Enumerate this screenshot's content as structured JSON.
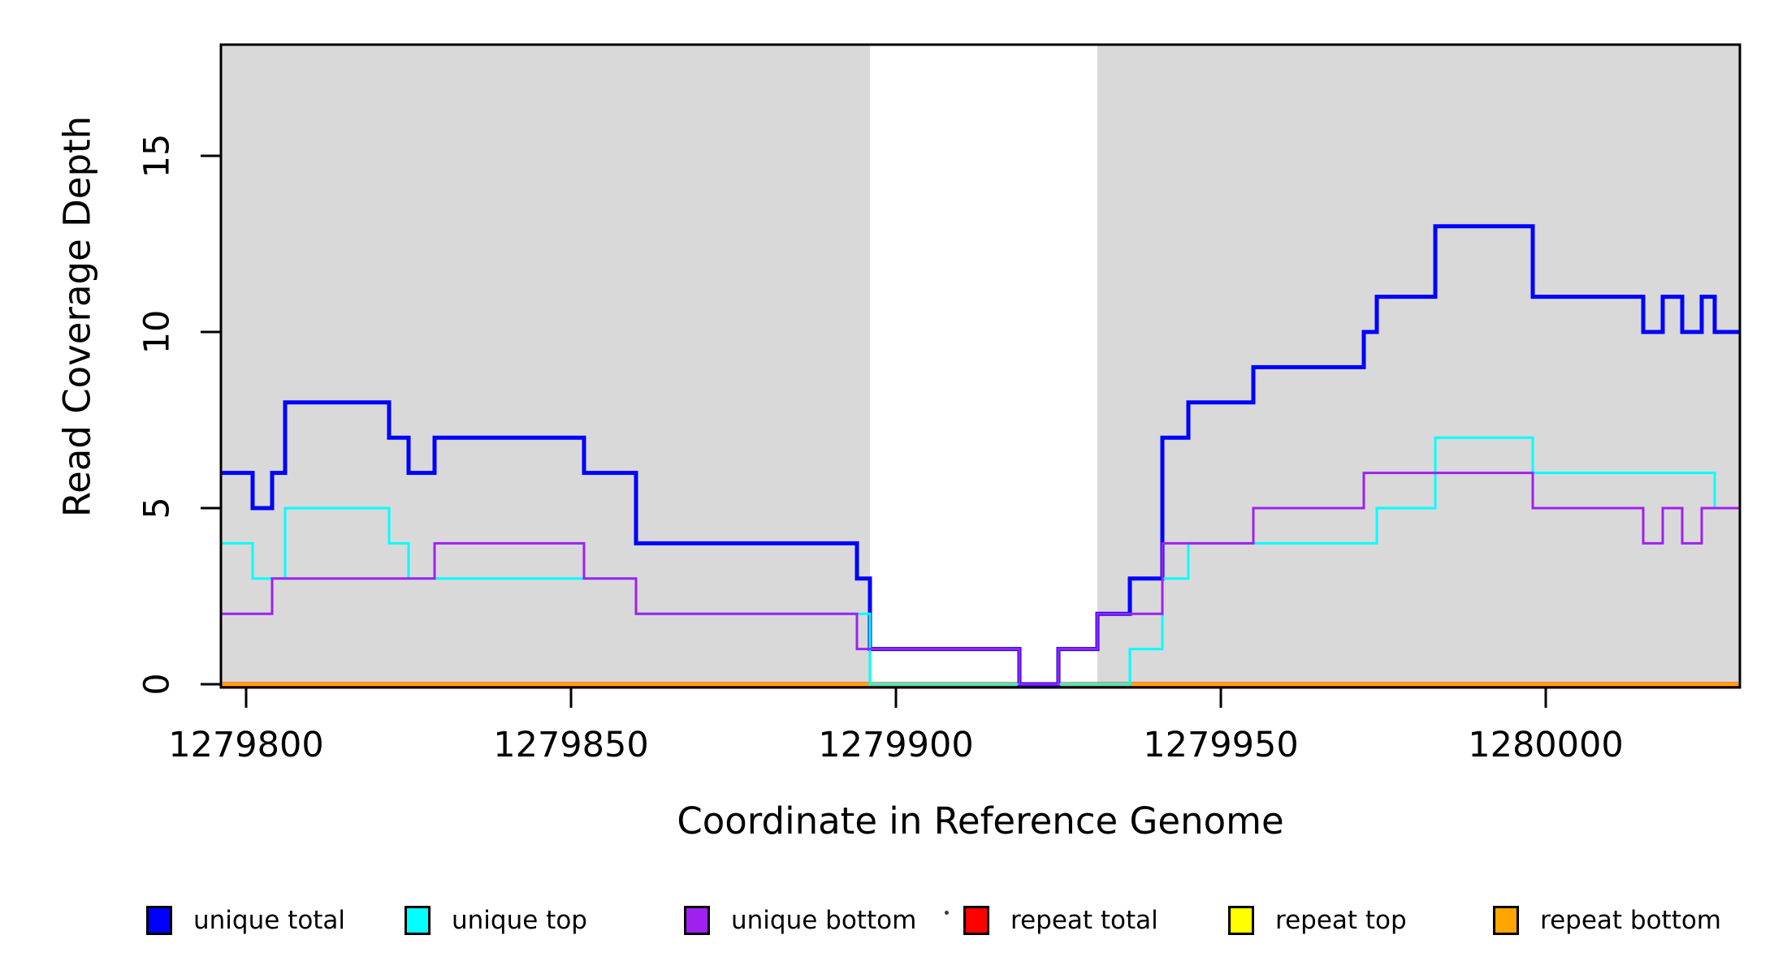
{
  "chart_data": {
    "type": "line",
    "line_style": "step-post",
    "title": "",
    "xlabel": "Coordinate in Reference Genome",
    "ylabel": "Read Coverage Depth",
    "x_ticks": [
      1279800,
      1279850,
      1279900,
      1279950,
      1280000
    ],
    "x_tick_labels": [
      "1279800",
      "1279850",
      "1279900",
      "1279950",
      "1280000"
    ],
    "y_ticks": [
      0,
      5,
      10,
      15
    ],
    "y_tick_labels": [
      "0",
      "5",
      "10",
      "15"
    ],
    "xlim": [
      1279796,
      1280030
    ],
    "ylim": [
      0,
      18.2
    ],
    "grid": false,
    "legend_position": "bottom",
    "background_shading": {
      "color": "#D9D9D9",
      "regions": [
        [
          1279796,
          1279896
        ],
        [
          1279931,
          1280030
        ]
      ]
    },
    "series": [
      {
        "name": "unique total",
        "color": "#0000FF",
        "line_width": 5,
        "x_end": 1280030,
        "points": [
          [
            1279796,
            6
          ],
          [
            1279801,
            5
          ],
          [
            1279804,
            6
          ],
          [
            1279806,
            8
          ],
          [
            1279822,
            7
          ],
          [
            1279825,
            6
          ],
          [
            1279829,
            7
          ],
          [
            1279852,
            6
          ],
          [
            1279860,
            4
          ],
          [
            1279894,
            3
          ],
          [
            1279896,
            1
          ],
          [
            1279919,
            0
          ],
          [
            1279925,
            1
          ],
          [
            1279931,
            2
          ],
          [
            1279936,
            3
          ],
          [
            1279941,
            7
          ],
          [
            1279945,
            8
          ],
          [
            1279955,
            9
          ],
          [
            1279972,
            10
          ],
          [
            1279974,
            11
          ],
          [
            1279983,
            13
          ],
          [
            1279998,
            11
          ],
          [
            1280015,
            10
          ],
          [
            1280018,
            11
          ],
          [
            1280021,
            10
          ],
          [
            1280024,
            11
          ],
          [
            1280026,
            10
          ]
        ]
      },
      {
        "name": "unique top",
        "color": "#00FFFF",
        "line_width": 3,
        "x_end": 1280030,
        "points": [
          [
            1279796,
            4
          ],
          [
            1279801,
            3
          ],
          [
            1279806,
            5
          ],
          [
            1279822,
            4
          ],
          [
            1279825,
            3
          ],
          [
            1279860,
            2
          ],
          [
            1279896,
            0
          ],
          [
            1279936,
            1
          ],
          [
            1279941,
            3
          ],
          [
            1279945,
            4
          ],
          [
            1279974,
            5
          ],
          [
            1279983,
            7
          ],
          [
            1279998,
            6
          ],
          [
            1280026,
            5
          ]
        ]
      },
      {
        "name": "unique bottom",
        "color": "#A020F0",
        "line_width": 3,
        "x_end": 1280030,
        "points": [
          [
            1279796,
            2
          ],
          [
            1279804,
            3
          ],
          [
            1279829,
            4
          ],
          [
            1279852,
            3
          ],
          [
            1279860,
            2
          ],
          [
            1279894,
            1
          ],
          [
            1279919,
            0
          ],
          [
            1279925,
            1
          ],
          [
            1279931,
            2
          ],
          [
            1279941,
            4
          ],
          [
            1279955,
            5
          ],
          [
            1279972,
            6
          ],
          [
            1279998,
            5
          ],
          [
            1280015,
            4
          ],
          [
            1280018,
            5
          ],
          [
            1280021,
            4
          ],
          [
            1280024,
            5
          ]
        ]
      },
      {
        "name": "repeat total",
        "color": "#FF0000",
        "line_width": 5,
        "x_end": 1280030,
        "points": [
          [
            1279796,
            0
          ]
        ]
      },
      {
        "name": "repeat top",
        "color": "#FFFF00",
        "line_width": 4,
        "x_end": 1280030,
        "points": [
          [
            1279796,
            0
          ]
        ]
      },
      {
        "name": "repeat bottom",
        "color": "#FF9D00",
        "line_width": 3.5,
        "x_end": 1280030,
        "points": [
          [
            1279796,
            0
          ]
        ]
      }
    ],
    "draw_order": [
      "repeat total",
      "repeat top",
      "repeat bottom",
      "unique total",
      "unique top",
      "unique bottom"
    ],
    "legend": {
      "items": [
        {
          "label": "unique total",
          "color": "#0000FF"
        },
        {
          "label": "unique top",
          "color": "#00FFFF"
        },
        {
          "label": "unique bottom",
          "color": "#A020F0"
        },
        {
          "label": "repeat total",
          "color": "#FF0000"
        },
        {
          "label": "repeat top",
          "color": "#FFFF00"
        },
        {
          "label": "repeat bottom",
          "color": "#FFA500"
        }
      ]
    }
  }
}
